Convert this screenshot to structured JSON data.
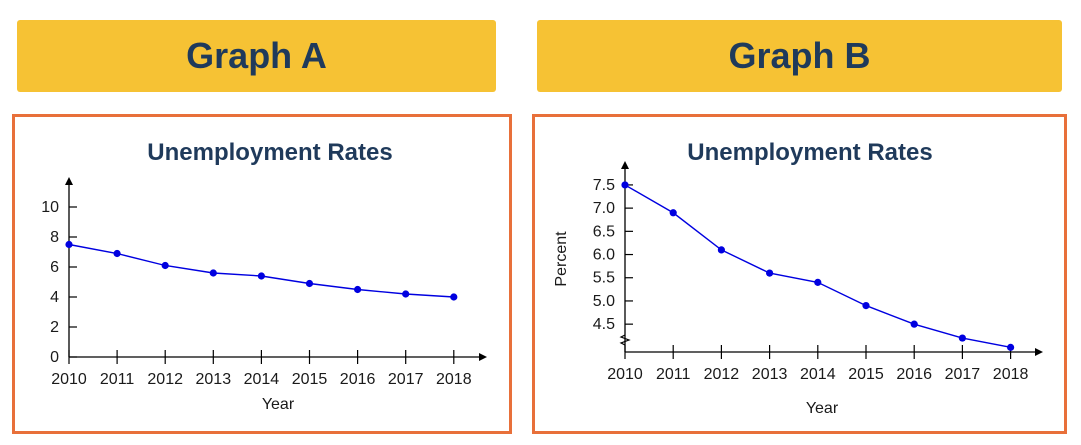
{
  "banners": {
    "a": "Graph A",
    "b": "Graph B"
  },
  "colors": {
    "banner": "#f6c234",
    "banner_text": "#1f3a5b",
    "panel_border": "#e8703a",
    "series": "#0000e0"
  },
  "chart_data": [
    {
      "type": "line",
      "title": "Unemployment Rates",
      "xlabel": "Year",
      "ylabel": "",
      "x": [
        2010,
        2011,
        2012,
        2013,
        2014,
        2015,
        2016,
        2017,
        2018
      ],
      "y": [
        7.5,
        6.9,
        6.1,
        5.6,
        5.4,
        4.9,
        4.5,
        4.2,
        4.0
      ],
      "xticks": [
        "2010",
        "2011",
        "2012",
        "2013",
        "2014",
        "2015",
        "2016",
        "2017",
        "2018"
      ],
      "yticks": [
        "0",
        "2",
        "4",
        "6",
        "8",
        "10"
      ],
      "ytick_values": [
        0,
        2,
        4,
        6,
        8,
        10
      ],
      "ylim": [
        0,
        11.2
      ],
      "axis_break": false,
      "grid": false
    },
    {
      "type": "line",
      "title": "Unemployment Rates",
      "xlabel": "Year",
      "ylabel": "Percent",
      "x": [
        2010,
        2011,
        2012,
        2013,
        2014,
        2015,
        2016,
        2017,
        2018
      ],
      "y": [
        7.5,
        6.9,
        6.1,
        5.6,
        5.4,
        4.9,
        4.5,
        4.2,
        4.0
      ],
      "xticks": [
        "2010",
        "2011",
        "2012",
        "2013",
        "2014",
        "2015",
        "2016",
        "2017",
        "2018"
      ],
      "yticks": [
        "4.5",
        "5.0",
        "5.5",
        "6.0",
        "6.5",
        "7.0",
        "7.5"
      ],
      "ytick_values": [
        4.5,
        5.0,
        5.5,
        6.0,
        6.5,
        7.0,
        7.5
      ],
      "ylim": [
        3.9,
        7.8
      ],
      "axis_break": true,
      "grid": false
    }
  ]
}
